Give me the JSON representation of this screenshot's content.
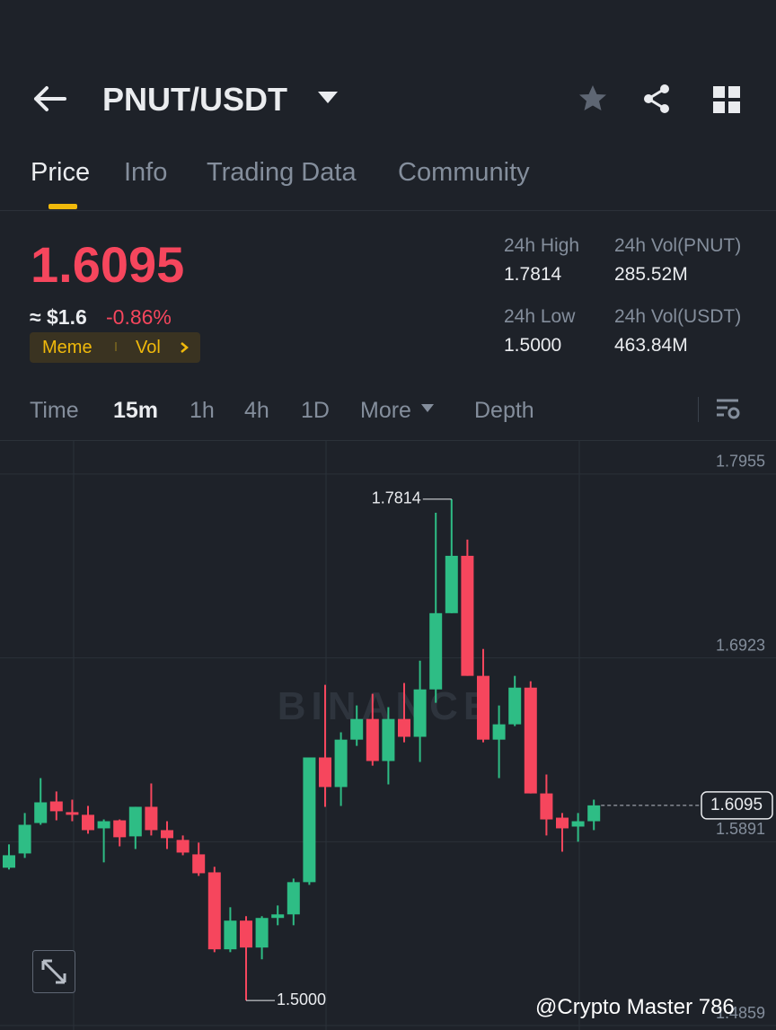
{
  "header": {
    "title": "PNUT/USDT"
  },
  "tabs": [
    "Price",
    "Info",
    "Trading Data",
    "Community"
  ],
  "ticker": {
    "price": "1.6095",
    "usd": "≈ $1.6",
    "change": "-0.86%",
    "tags": [
      "Meme",
      "Vol"
    ]
  },
  "stats": [
    {
      "label": "24h High",
      "value": "1.7814"
    },
    {
      "label": "24h Vol(PNUT)",
      "value": "285.52M"
    },
    {
      "label": "24h Low",
      "value": "1.5000"
    },
    {
      "label": "24h Vol(USDT)",
      "value": "463.84M"
    }
  ],
  "intervals": [
    "Time",
    "15m",
    "1h",
    "4h",
    "1D",
    "More",
    "Depth"
  ],
  "chart_data": {
    "type": "candlestick",
    "watermark": "BINANCE",
    "open": [
      1.5745,
      1.5825,
      1.5996,
      1.6117,
      1.6057,
      1.6042,
      1.5966,
      1.6011,
      1.5921,
      1.6087,
      1.5956,
      1.5901,
      1.582,
      1.5719,
      1.5287,
      1.5448,
      1.5297,
      1.5463,
      1.5483,
      1.5664,
      1.6364,
      1.6198,
      1.6464,
      1.658,
      1.6344,
      1.658,
      1.648,
      1.6746,
      1.7174,
      1.7496,
      1.6822,
      1.6464,
      1.655,
      1.6756,
      1.6162,
      1.6026,
      1.5976,
      1.6006
    ],
    "high": [
      1.5876,
      1.6052,
      1.6248,
      1.6173,
      1.6127,
      1.6092,
      1.6016,
      1.6016,
      1.6087,
      1.6218,
      1.6006,
      1.5926,
      1.5886,
      1.575,
      1.5523,
      1.5473,
      1.5473,
      1.5533,
      1.5684,
      1.6364,
      1.6772,
      1.6505,
      1.6656,
      1.6721,
      1.6646,
      1.6782,
      1.6907,
      1.7738,
      1.7814,
      1.7587,
      1.6973,
      1.6656,
      1.6822,
      1.6792,
      1.6268,
      1.6052,
      1.6052,
      1.6127
    ],
    "low": [
      1.5735,
      1.58,
      1.5986,
      1.6011,
      1.6006,
      1.5936,
      1.5775,
      1.5865,
      1.585,
      1.5926,
      1.585,
      1.5815,
      1.5699,
      1.5271,
      1.5271,
      1.5,
      1.5231,
      1.5422,
      1.5422,
      1.5649,
      1.6087,
      1.6092,
      1.6429,
      1.6318,
      1.6213,
      1.6449,
      1.6339,
      1.6671,
      1.7174,
      1.6822,
      1.6449,
      1.6248,
      1.654,
      1.6162,
      1.5926,
      1.5835,
      1.5891,
      1.5956
    ],
    "close": [
      1.5815,
      1.5986,
      1.6112,
      1.6062,
      1.6042,
      1.5956,
      1.6006,
      1.5916,
      1.6087,
      1.5956,
      1.5911,
      1.583,
      1.5714,
      1.5287,
      1.5448,
      1.5297,
      1.5463,
      1.5483,
      1.5664,
      1.6364,
      1.6198,
      1.6464,
      1.658,
      1.6344,
      1.658,
      1.648,
      1.6746,
      1.7174,
      1.7496,
      1.6822,
      1.6464,
      1.655,
      1.6756,
      1.6162,
      1.6016,
      1.5966,
      1.6006,
      1.6095
    ],
    "up_color": "#2ebd85",
    "down_color": "#f6465d",
    "ylim": [
      1.4834,
      1.8141
    ],
    "yticks": [
      1.7955,
      1.6923,
      1.5891,
      1.4859
    ],
    "grid": true,
    "high_marker": {
      "value": 1.7814,
      "label": "1.7814"
    },
    "low_marker": {
      "value": 1.5,
      "label": "1.5000"
    },
    "last_price": {
      "value": 1.6095,
      "label": "1.6095"
    }
  },
  "credit": "@Crypto Master 786"
}
